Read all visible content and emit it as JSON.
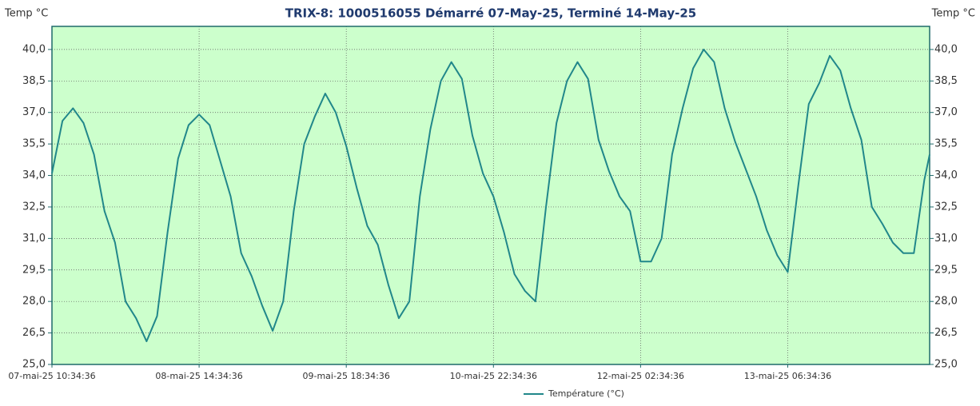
{
  "chart_data": {
    "type": "line",
    "title": "TRIX-8: 1000516055 Démarré 07-May-25, Terminé 14-May-25",
    "y_label": "Temp °C",
    "y2_label": "Temp °C",
    "x": [
      0,
      2,
      4,
      6,
      8,
      10,
      12,
      14,
      16,
      18,
      20,
      22,
      24,
      26,
      28,
      30,
      32,
      34,
      36,
      38,
      40,
      42,
      44,
      46,
      48,
      50,
      52,
      54,
      56,
      58,
      60,
      62,
      64,
      66,
      68,
      70,
      72,
      74,
      76,
      78,
      80,
      82,
      84,
      86,
      88,
      90,
      92,
      94,
      96,
      98,
      100,
      102,
      104,
      106,
      108,
      110,
      112,
      114,
      116,
      118,
      120,
      122,
      124,
      126,
      128,
      130,
      132,
      134,
      136,
      138,
      140,
      142,
      144,
      146,
      148,
      150,
      152,
      154,
      156,
      158,
      160,
      162,
      164,
      166,
      167
    ],
    "series": [
      {
        "name": "Température (°C)",
        "color": "#21878a",
        "values": [
          34.1,
          36.6,
          37.2,
          36.5,
          35.0,
          32.3,
          30.8,
          28.0,
          27.2,
          26.1,
          27.3,
          31.3,
          34.8,
          36.4,
          36.9,
          36.4,
          34.7,
          33.0,
          30.3,
          29.2,
          27.8,
          26.6,
          28.0,
          32.3,
          35.5,
          36.8,
          37.9,
          37.0,
          35.4,
          33.4,
          31.6,
          30.7,
          28.8,
          27.2,
          28.0,
          33.0,
          36.2,
          38.5,
          39.4,
          38.6,
          35.9,
          34.1,
          33.0,
          31.3,
          29.3,
          28.5,
          28.0,
          32.5,
          36.5,
          38.5,
          39.4,
          38.6,
          35.7,
          34.2,
          33.0,
          32.3,
          29.9,
          29.9,
          31.0,
          35.0,
          37.2,
          39.1,
          40.0,
          39.4,
          37.2,
          35.6,
          34.3,
          33.0,
          31.4,
          30.2,
          29.4,
          33.5,
          37.4,
          38.4,
          39.7,
          39.0,
          37.2,
          35.7,
          32.5,
          31.7,
          30.8,
          30.3,
          30.3,
          33.8,
          35.0
        ]
      }
    ],
    "xlim": [
      0,
      167
    ],
    "xticks": [
      {
        "value": 0,
        "label": "07-mai-25 10:34:36"
      },
      {
        "value": 28,
        "label": "08-mai-25 14:34:36"
      },
      {
        "value": 56,
        "label": "09-mai-25 18:34:36"
      },
      {
        "value": 84,
        "label": "10-mai-25 22:34:36"
      },
      {
        "value": 112,
        "label": "12-mai-25 02:34:36"
      },
      {
        "value": 140,
        "label": "13-mai-25 06:34:36"
      }
    ],
    "ylim": [
      25,
      41.1
    ],
    "yticks": [
      {
        "value": 25,
        "label": "25,0"
      },
      {
        "value": 26.5,
        "label": "26,5"
      },
      {
        "value": 28,
        "label": "28,0"
      },
      {
        "value": 29.5,
        "label": "29,5"
      },
      {
        "value": 31,
        "label": "31,0"
      },
      {
        "value": 32.5,
        "label": "32,5"
      },
      {
        "value": 34,
        "label": "34,0"
      },
      {
        "value": 35.5,
        "label": "35,5"
      },
      {
        "value": 37,
        "label": "37,0"
      },
      {
        "value": 38.5,
        "label": "38,5"
      },
      {
        "value": 40,
        "label": "40,0"
      }
    ],
    "y2lim": [
      25,
      41.1
    ],
    "y2ticks": [
      {
        "value": 25,
        "label": "25,0"
      },
      {
        "value": 26.5,
        "label": "26,5"
      },
      {
        "value": 28,
        "label": "28,0"
      },
      {
        "value": 29.5,
        "label": "29,5"
      },
      {
        "value": 31,
        "label": "31,0"
      },
      {
        "value": 32.5,
        "label": "32,5"
      },
      {
        "value": 34,
        "label": "34,0"
      },
      {
        "value": 35.5,
        "label": "35,5"
      },
      {
        "value": 37,
        "label": "37,0"
      },
      {
        "value": 38.5,
        "label": "38,5"
      },
      {
        "value": 40,
        "label": "40,0"
      }
    ],
    "grid": true,
    "background": "#ccffcc",
    "legend": "bottom"
  }
}
